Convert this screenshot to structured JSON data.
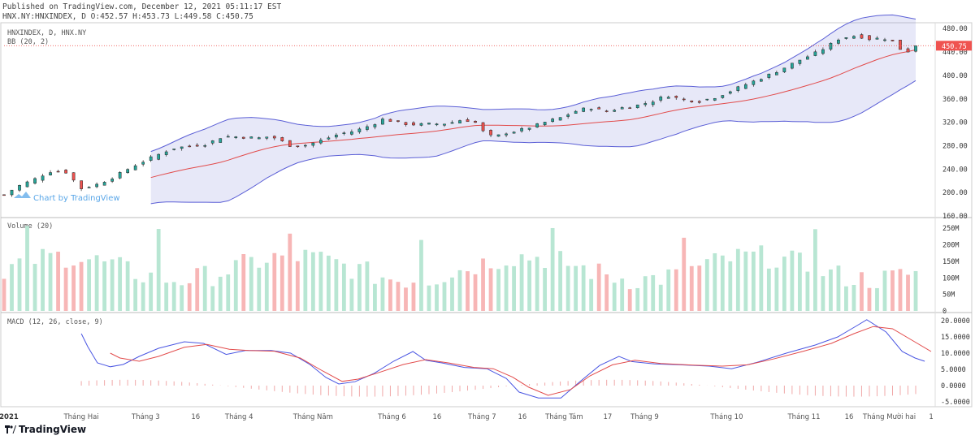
{
  "header": {
    "published": "Published on TradingView.com, December 12, 2021 05:11:17 EST",
    "ohlc": "HNX.NY:HNXINDEX, D O:452.57 H:453.73 L:449.58 C:450.75"
  },
  "watermark": "Chart by TradingView",
  "footer": {
    "brand": "TradingView"
  },
  "colors": {
    "up_candle": "#26a69a",
    "down_candle": "#ef5350",
    "bb_band": "#5b5fd6",
    "bb_basis": "#e24b4b",
    "bb_fill": "#7b7fd9",
    "macd_line": "#4a56e2",
    "signal_line": "#e24b4b",
    "hist_pos": "#f0a8a8",
    "vol_up": "#b8e6d3",
    "vol_down": "#f7b6b6"
  },
  "chart_data": [
    {
      "type": "candlestick",
      "panel": "price",
      "legend": [
        "HNXINDEX, D, HNX.NY",
        "BB (20, 2)"
      ],
      "last_price": 450.75,
      "last_price_label": "450.75",
      "ylim": [
        160,
        490
      ],
      "y_ticks": [
        160,
        200,
        240,
        280,
        320,
        360,
        400,
        440,
        480
      ],
      "y_tick_labels": [
        "160.00",
        "200.00",
        "240.00",
        "280.00",
        "320.00",
        "360.00",
        "400.00",
        "440.00",
        "480.00"
      ],
      "close_points": [
        [
          0,
          196
        ],
        [
          8,
          210
        ],
        [
          20,
          224
        ],
        [
          28,
          236
        ],
        [
          38,
          236
        ],
        [
          48,
          207
        ],
        [
          58,
          214
        ],
        [
          70,
          229
        ],
        [
          80,
          245
        ],
        [
          92,
          260
        ],
        [
          104,
          275
        ],
        [
          114,
          279
        ],
        [
          126,
          283
        ],
        [
          136,
          296
        ],
        [
          146,
          295
        ],
        [
          158,
          293
        ],
        [
          166,
          296
        ],
        [
          178,
          280
        ],
        [
          188,
          281
        ],
        [
          198,
          290
        ],
        [
          208,
          300
        ],
        [
          218,
          305
        ],
        [
          228,
          315
        ],
        [
          236,
          326
        ],
        [
          246,
          318
        ],
        [
          256,
          316
        ],
        [
          266,
          317
        ],
        [
          276,
          318
        ],
        [
          284,
          324
        ],
        [
          292,
          322
        ],
        [
          298,
          303
        ],
        [
          304,
          294
        ],
        [
          312,
          302
        ],
        [
          320,
          306
        ],
        [
          330,
          314
        ],
        [
          338,
          322
        ],
        [
          346,
          328
        ],
        [
          356,
          340
        ],
        [
          364,
          345
        ],
        [
          374,
          338
        ],
        [
          382,
          344
        ],
        [
          392,
          348
        ],
        [
          402,
          355
        ],
        [
          412,
          366
        ],
        [
          422,
          358
        ],
        [
          432,
          356
        ],
        [
          442,
          363
        ],
        [
          452,
          374
        ],
        [
          462,
          386
        ],
        [
          472,
          397
        ],
        [
          484,
          412
        ],
        [
          494,
          426
        ],
        [
          504,
          438
        ],
        [
          512,
          450
        ],
        [
          518,
          462
        ],
        [
          524,
          466
        ],
        [
          530,
          468
        ],
        [
          538,
          462
        ],
        [
          546,
          464
        ],
        [
          552,
          458
        ],
        [
          556,
          446
        ],
        [
          562,
          441
        ],
        [
          568,
          450
        ]
      ],
      "date_ticks": [
        {
          "i": 3,
          "label": "2021",
          "bold": true
        },
        {
          "i": 48,
          "label": "Tháng Hai"
        },
        {
          "i": 88,
          "label": "Tháng 3"
        },
        {
          "i": 119,
          "label": "16"
        },
        {
          "i": 146,
          "label": "Tháng 4"
        },
        {
          "i": 192,
          "label": "Tháng Năm"
        },
        {
          "i": 241,
          "label": "Tháng 6"
        },
        {
          "i": 269,
          "label": "16"
        },
        {
          "i": 297,
          "label": "Tháng 7"
        },
        {
          "i": 322,
          "label": "16"
        },
        {
          "i": 348,
          "label": "Tháng Tám"
        },
        {
          "i": 375,
          "label": "17"
        },
        {
          "i": 398,
          "label": "Tháng 9"
        },
        {
          "i": 449,
          "label": "Tháng 10"
        },
        {
          "i": 497,
          "label": "Tháng 11"
        },
        {
          "i": 525,
          "label": "16"
        },
        {
          "i": 550,
          "label": "Tháng Mười hai"
        },
        {
          "i": 576,
          "label": "1"
        }
      ],
      "n_bars": 568
    },
    {
      "type": "bar",
      "panel": "volume",
      "legend": "Volume (20)",
      "ylim": [
        0,
        270
      ],
      "y_ticks": [
        0,
        50,
        100,
        150,
        200,
        250
      ],
      "y_tick_labels": [
        "0",
        "50M",
        "100M",
        "150M",
        "200M",
        "250M"
      ],
      "unit": "M"
    },
    {
      "type": "line",
      "panel": "macd",
      "legend": "MACD (12, 26, close, 9)",
      "ylim": [
        -6.5,
        22
      ],
      "y_ticks": [
        -5,
        0,
        5,
        10,
        15,
        20
      ],
      "y_tick_labels": [
        "-5.0000",
        "0.0000",
        "5.0000",
        "10.0000",
        "15.0000",
        "20.0000"
      ],
      "series": [
        {
          "name": "MACD",
          "points": [
            [
              48,
              16
            ],
            [
              52,
              12
            ],
            [
              58,
              7
            ],
            [
              66,
              5.8
            ],
            [
              74,
              6.5
            ],
            [
              84,
              9
            ],
            [
              96,
              11.5
            ],
            [
              112,
              13.5
            ],
            [
              124,
              13
            ],
            [
              138,
              9.6
            ],
            [
              150,
              10.8
            ],
            [
              166,
              10.8
            ],
            [
              178,
              10
            ],
            [
              190,
              6.5
            ],
            [
              200,
              2.5
            ],
            [
              208,
              0.5
            ],
            [
              218,
              1.2
            ],
            [
              230,
              3.8
            ],
            [
              242,
              7.5
            ],
            [
              254,
              10.5
            ],
            [
              262,
              7.8
            ],
            [
              272,
              7
            ],
            [
              286,
              5.6
            ],
            [
              300,
              5.2
            ],
            [
              312,
              2.2
            ],
            [
              320,
              -2
            ],
            [
              332,
              -3.8
            ],
            [
              346,
              -3.8
            ],
            [
              358,
              1.3
            ],
            [
              370,
              6.2
            ],
            [
              382,
              9
            ],
            [
              390,
              7.4
            ],
            [
              404,
              6.7
            ],
            [
              420,
              6.4
            ],
            [
              438,
              6
            ],
            [
              452,
              5.2
            ],
            [
              468,
              7.2
            ],
            [
              486,
              10
            ],
            [
              504,
              12.5
            ],
            [
              518,
              15
            ],
            [
              530,
              18.5
            ],
            [
              536,
              20.3
            ],
            [
              548,
              16.5
            ],
            [
              558,
              10.5
            ],
            [
              566,
              8.5
            ],
            [
              572,
              7.5
            ]
          ]
        },
        {
          "name": "Signal",
          "points": [
            [
              66,
              10
            ],
            [
              72,
              8.5
            ],
            [
              84,
              7.5
            ],
            [
              96,
              9
            ],
            [
              112,
              11.8
            ],
            [
              126,
              12.7
            ],
            [
              140,
              11.2
            ],
            [
              152,
              10.8
            ],
            [
              168,
              10.6
            ],
            [
              184,
              8.5
            ],
            [
              198,
              4.5
            ],
            [
              210,
              1.3
            ],
            [
              220,
              2
            ],
            [
              234,
              4.2
            ],
            [
              248,
              6.5
            ],
            [
              262,
              8
            ],
            [
              276,
              7
            ],
            [
              292,
              5.6
            ],
            [
              304,
              5.2
            ],
            [
              316,
              2.6
            ],
            [
              326,
              -0.5
            ],
            [
              338,
              -3
            ],
            [
              352,
              -1.2
            ],
            [
              364,
              3
            ],
            [
              378,
              6.4
            ],
            [
              392,
              7.8
            ],
            [
              408,
              6.8
            ],
            [
              428,
              6.3
            ],
            [
              446,
              6
            ],
            [
              462,
              6.4
            ],
            [
              478,
              8.2
            ],
            [
              496,
              10.5
            ],
            [
              514,
              13
            ],
            [
              528,
              16
            ],
            [
              540,
              18.2
            ],
            [
              552,
              17.5
            ],
            [
              564,
              14
            ],
            [
              576,
              10.5
            ]
          ]
        }
      ]
    }
  ]
}
